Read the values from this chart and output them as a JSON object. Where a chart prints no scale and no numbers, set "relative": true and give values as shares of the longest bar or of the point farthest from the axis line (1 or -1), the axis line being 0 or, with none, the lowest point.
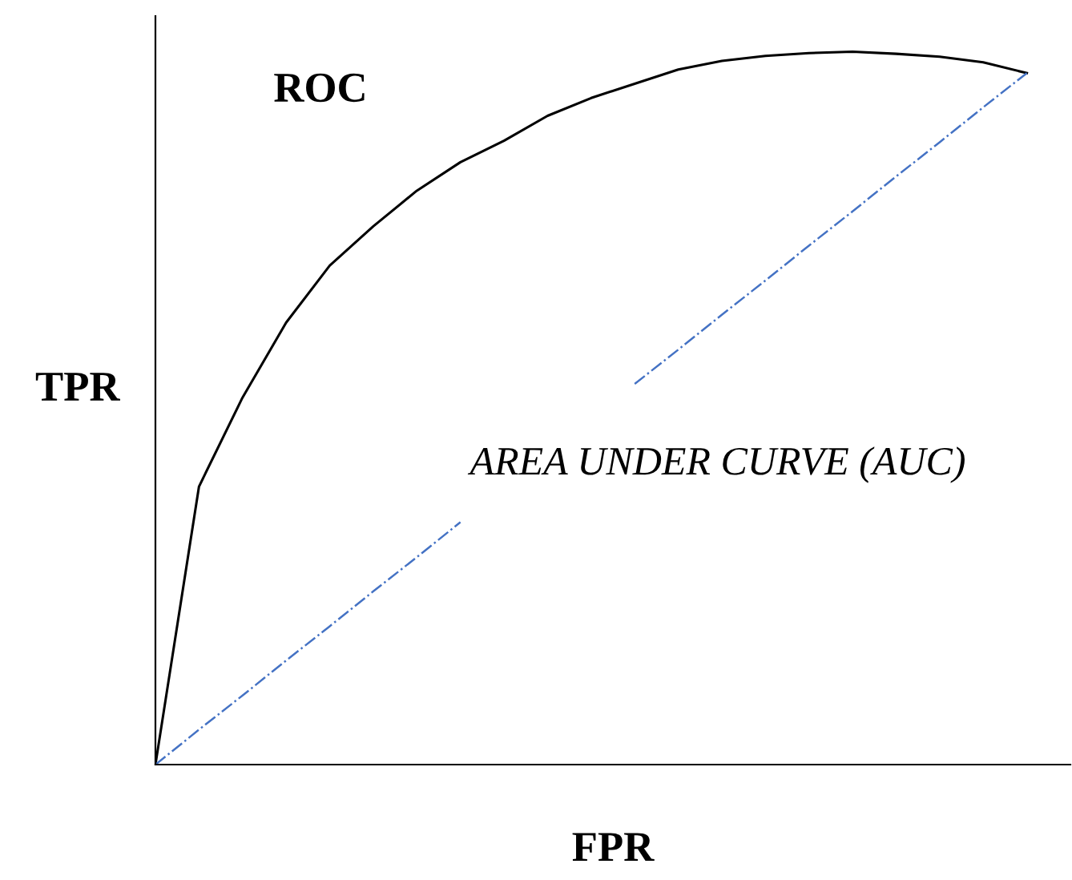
{
  "chart_data": {
    "type": "line",
    "relative": true,
    "xlabel": "FPR",
    "ylabel": "TPR",
    "annotations": [
      "ROC",
      "AREA UNDER CURVE (AUC)"
    ],
    "categories": [
      null,
      null,
      null,
      null,
      null,
      null,
      null,
      null,
      null,
      null,
      null,
      null,
      null,
      null,
      null,
      null,
      null,
      null,
      null,
      null,
      null
    ],
    "series": [
      {
        "color": "#000000",
        "line_style": "solid",
        "values": [
          0,
          0.39,
          0.515,
          0.62,
          0.7,
          0.755,
          0.805,
          0.845,
          0.875,
          0.91,
          0.935,
          0.955,
          0.975,
          0.987,
          0.994,
          0.998,
          1.0,
          0.997,
          0.993,
          0.985,
          0.97
        ]
      },
      {
        "color": "#4472c4",
        "line_style": "dashdot",
        "values": [
          0,
          0.049,
          0.097,
          0.146,
          0.194,
          0.243,
          0.291,
          0.34,
          null,
          null,
          null,
          0.534,
          0.582,
          0.631,
          0.679,
          0.728,
          0.776,
          0.825,
          0.873,
          0.922,
          0.97
        ]
      }
    ]
  }
}
